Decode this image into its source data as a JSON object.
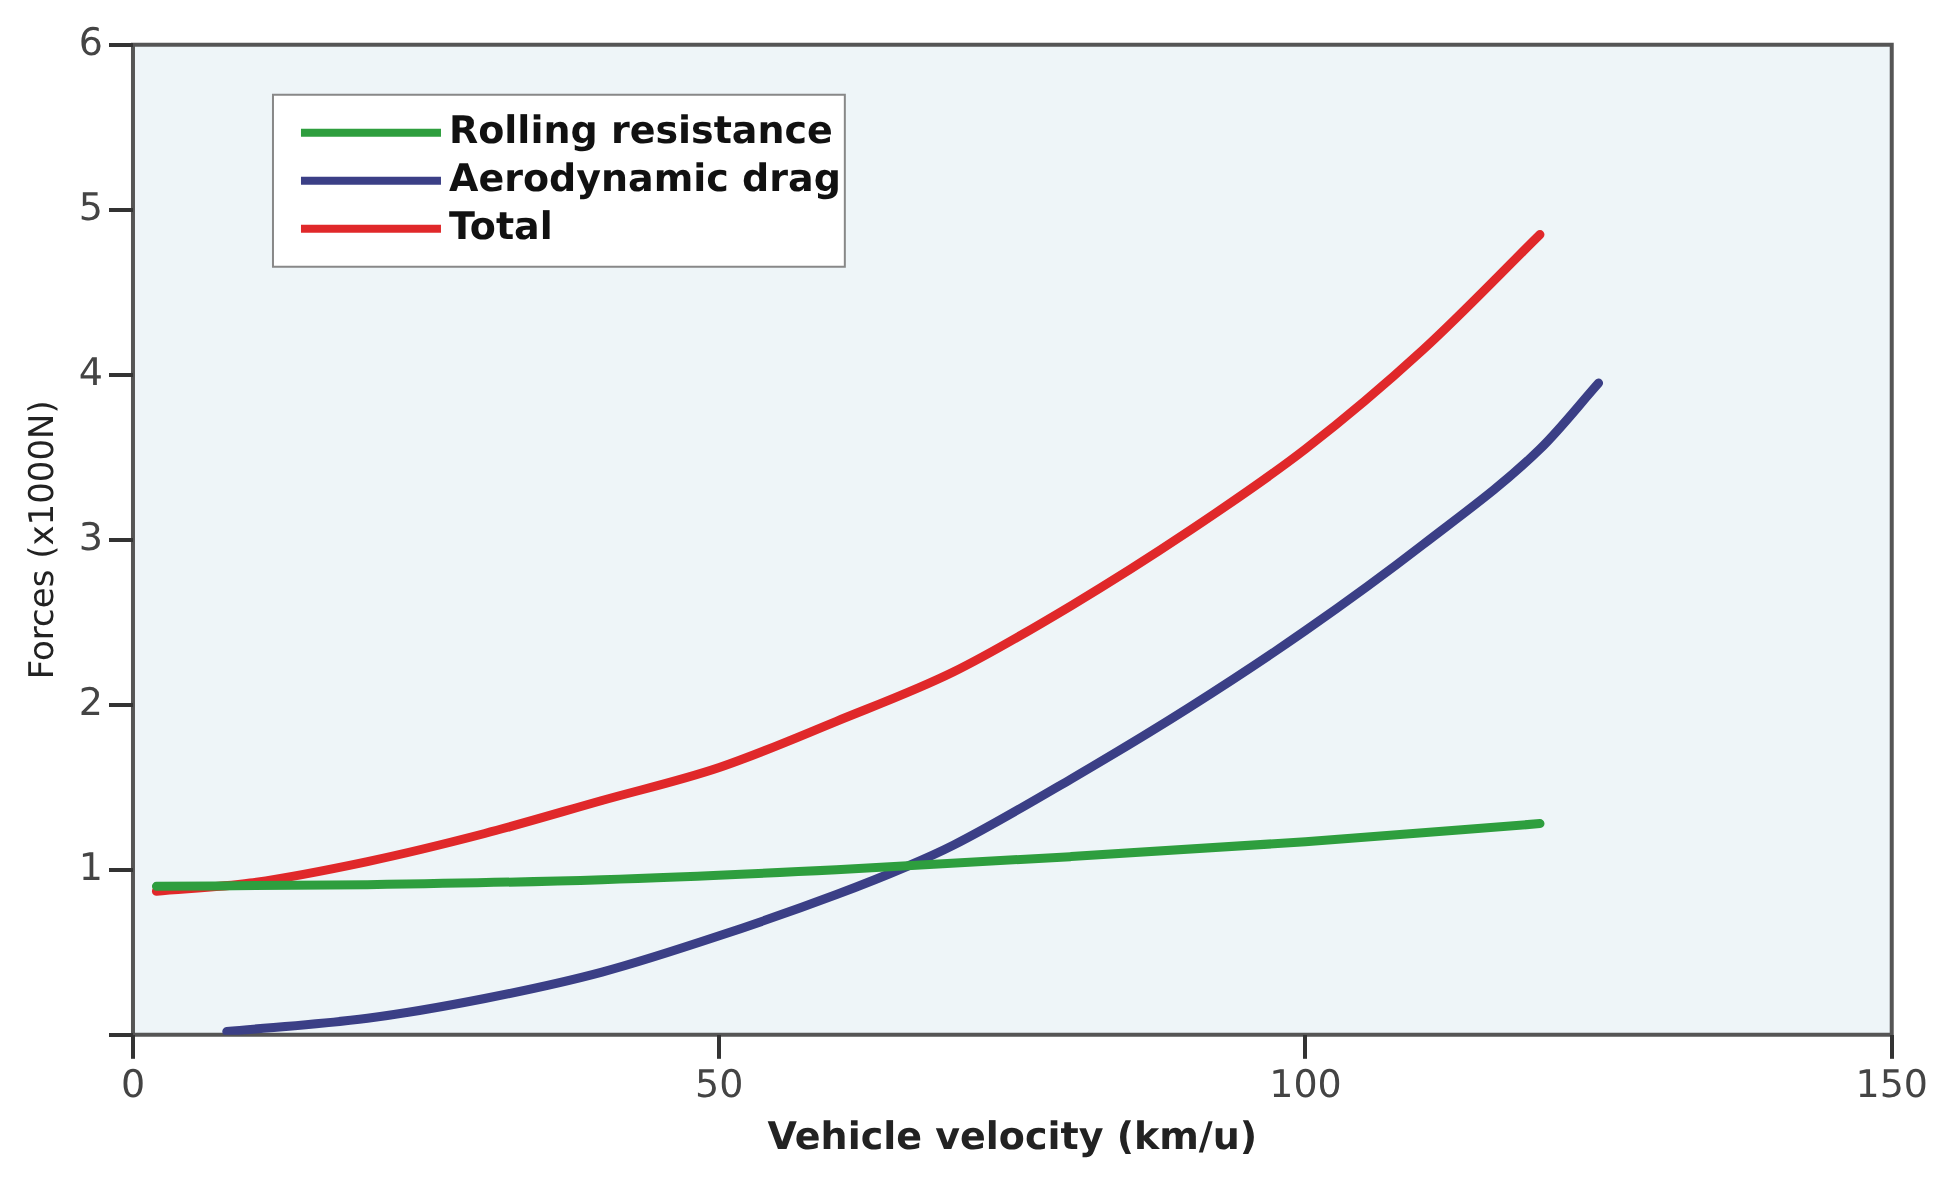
{
  "chart_data": {
    "type": "line",
    "xlabel": "Vehicle velocity (km/u)",
    "ylabel": "Forces (x1000N)",
    "xlim": [
      0,
      150
    ],
    "xticks": [
      0,
      50,
      100,
      150
    ],
    "ylim": [
      0,
      6
    ],
    "yticks": [
      {
        "value": 0,
        "label": null
      },
      1,
      2,
      3,
      4,
      5,
      6
    ],
    "grid": false,
    "legend": "top left",
    "marker": "none",
    "line_style": "solid",
    "series": [
      {
        "name": "Rolling resistance",
        "color": "#2e9e3e",
        "x": [
          2,
          20,
          40,
          60,
          80,
          100,
          120
        ],
        "values": [
          0.9,
          0.91,
          0.94,
          1.0,
          1.08,
          1.17,
          1.28
        ]
      },
      {
        "name": "Aerodynamic drag",
        "color": "#3b3f86",
        "x": [
          8,
          20,
          30,
          40,
          50,
          60,
          66,
          70,
          80,
          90,
          100,
          110,
          120,
          125
        ],
        "values": [
          0.02,
          0.1,
          0.22,
          0.38,
          0.6,
          0.85,
          1.02,
          1.15,
          1.55,
          1.98,
          2.45,
          2.97,
          3.55,
          3.95
        ]
      },
      {
        "name": "Total",
        "color": "#e0282a",
        "x": [
          2,
          10,
          20,
          30,
          40,
          50,
          60,
          70,
          80,
          90,
          100,
          110,
          120
        ],
        "values": [
          0.87,
          0.92,
          1.05,
          1.22,
          1.42,
          1.62,
          1.9,
          2.2,
          2.6,
          3.05,
          3.55,
          4.15,
          4.85
        ]
      }
    ]
  }
}
